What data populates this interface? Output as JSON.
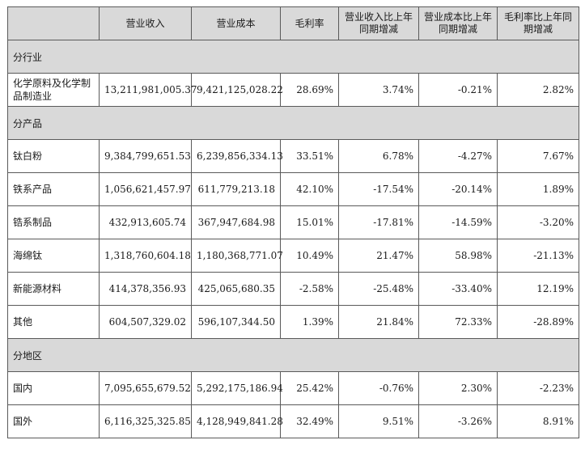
{
  "header": {
    "blank": "",
    "revenue": "营业收入",
    "cost": "营业成本",
    "gross_margin": "毛利率",
    "revenue_yoy": "营业收入比上年同期增减",
    "cost_yoy": "营业成本比上年同期增减",
    "margin_yoy": "毛利率比上年同期增减"
  },
  "sections": [
    {
      "title": "分行业",
      "rows": [
        {
          "name": "化学原料及化学制品制造业",
          "revenue": "13,211,981,005.37",
          "cost": "9,421,125,028.22",
          "margin": "28.69%",
          "revenue_yoy": "3.74%",
          "cost_yoy": "-0.21%",
          "margin_yoy": "2.82%"
        }
      ]
    },
    {
      "title": "分产品",
      "rows": [
        {
          "name": "钛白粉",
          "revenue": "9,384,799,651.53",
          "cost": "6,239,856,334.13",
          "margin": "33.51%",
          "revenue_yoy": "6.78%",
          "cost_yoy": "-4.27%",
          "margin_yoy": "7.67%"
        },
        {
          "name": "铁系产品",
          "revenue": "1,056,621,457.97",
          "cost": "611,779,213.18",
          "margin": "42.10%",
          "revenue_yoy": "-17.54%",
          "cost_yoy": "-20.14%",
          "margin_yoy": "1.89%"
        },
        {
          "name": "锆系制品",
          "revenue": "432,913,605.74",
          "cost": "367,947,684.98",
          "margin": "15.01%",
          "revenue_yoy": "-17.81%",
          "cost_yoy": "-14.59%",
          "margin_yoy": "-3.20%"
        },
        {
          "name": "海绵钛",
          "revenue": "1,318,760,604.18",
          "cost": "1,180,368,771.07",
          "margin": "10.49%",
          "revenue_yoy": "21.47%",
          "cost_yoy": "58.98%",
          "margin_yoy": "-21.13%"
        },
        {
          "name": "新能源材料",
          "revenue": "414,378,356.93",
          "cost": "425,065,680.35",
          "margin": "-2.58%",
          "revenue_yoy": "-25.48%",
          "cost_yoy": "-33.40%",
          "margin_yoy": "12.19%"
        },
        {
          "name": "其他",
          "revenue": "604,507,329.02",
          "cost": "596,107,344.50",
          "margin": "1.39%",
          "revenue_yoy": "21.84%",
          "cost_yoy": "72.33%",
          "margin_yoy": "-28.89%"
        }
      ]
    },
    {
      "title": "分地区",
      "rows": [
        {
          "name": "国内",
          "revenue": "7,095,655,679.52",
          "cost": "5,292,175,186.94",
          "margin": "25.42%",
          "revenue_yoy": "-0.76%",
          "cost_yoy": "2.30%",
          "margin_yoy": "-2.23%"
        },
        {
          "name": "国外",
          "revenue": "6,116,325,325.85",
          "cost": "4,128,949,841.28",
          "margin": "32.49%",
          "revenue_yoy": "9.51%",
          "cost_yoy": "-3.26%",
          "margin_yoy": "8.91%"
        }
      ]
    }
  ]
}
